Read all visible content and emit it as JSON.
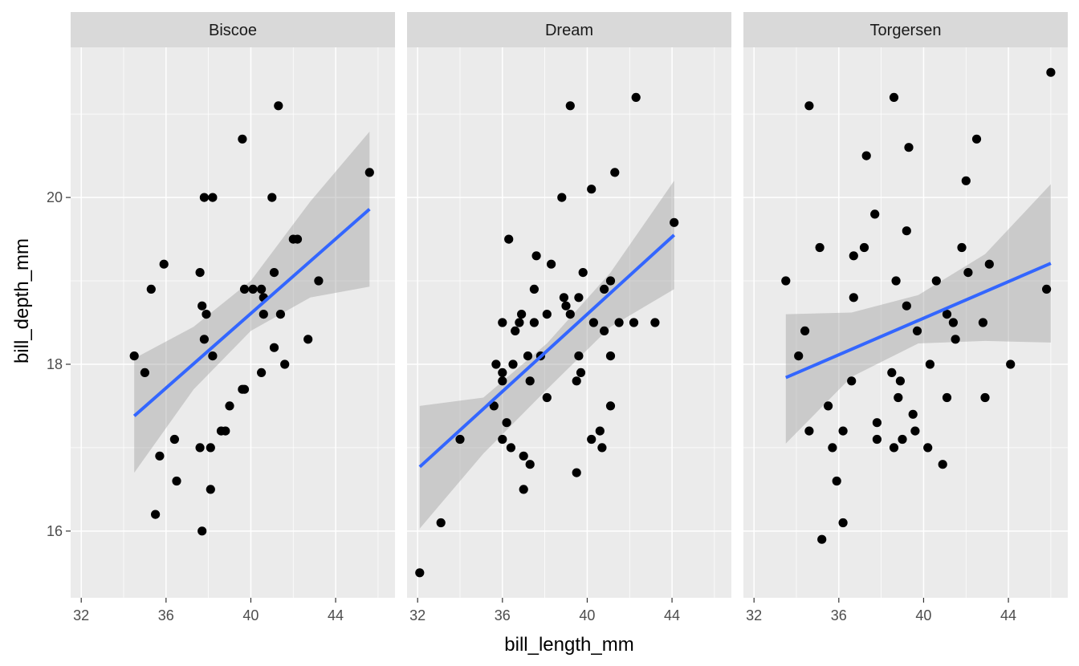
{
  "chart_data": {
    "type": "scatter",
    "facet_by": "island",
    "xlabel": "bill_length_mm",
    "ylabel": "bill_depth_mm",
    "xlim": [
      31.5,
      46.8
    ],
    "ylim": [
      15.2,
      21.8
    ],
    "x_ticks": [
      32,
      36,
      40,
      44
    ],
    "y_ticks": [
      16,
      18,
      20
    ],
    "grid": true,
    "colors": {
      "panel_bg": "#EBEBEB",
      "strip_bg": "#D9D9D9",
      "grid": "#FFFFFF",
      "point": "#000000",
      "line": "#3366FF",
      "band": "#999999"
    },
    "facets": [
      {
        "label": "Biscoe",
        "points": [
          [
            34.5,
            18.1
          ],
          [
            35.0,
            17.9
          ],
          [
            35.3,
            18.9
          ],
          [
            35.5,
            16.2
          ],
          [
            35.7,
            16.9
          ],
          [
            35.9,
            19.2
          ],
          [
            36.4,
            17.1
          ],
          [
            36.5,
            16.6
          ],
          [
            37.6,
            19.1
          ],
          [
            37.6,
            17.0
          ],
          [
            37.7,
            16.0
          ],
          [
            37.7,
            18.7
          ],
          [
            37.8,
            20.0
          ],
          [
            37.8,
            18.3
          ],
          [
            37.9,
            18.6
          ],
          [
            38.1,
            17.0
          ],
          [
            38.1,
            16.5
          ],
          [
            38.2,
            18.1
          ],
          [
            38.2,
            20.0
          ],
          [
            38.6,
            17.2
          ],
          [
            38.8,
            17.2
          ],
          [
            39.0,
            17.5
          ],
          [
            39.6,
            20.7
          ],
          [
            39.6,
            17.7
          ],
          [
            39.7,
            18.9
          ],
          [
            39.7,
            17.7
          ],
          [
            40.1,
            18.9
          ],
          [
            40.5,
            17.9
          ],
          [
            40.5,
            18.9
          ],
          [
            40.6,
            18.6
          ],
          [
            40.6,
            18.8
          ],
          [
            41.0,
            20.0
          ],
          [
            41.1,
            18.2
          ],
          [
            41.1,
            19.1
          ],
          [
            41.3,
            21.1
          ],
          [
            41.4,
            18.6
          ],
          [
            41.6,
            18.0
          ],
          [
            42.0,
            19.5
          ],
          [
            42.2,
            19.5
          ],
          [
            42.7,
            18.3
          ],
          [
            43.2,
            19.0
          ],
          [
            45.6,
            20.3
          ]
        ],
        "fit": {
          "x": [
            34.5,
            45.6
          ],
          "y": [
            17.38,
            19.86
          ]
        },
        "band": {
          "x": [
            34.5,
            37.3,
            40.0,
            42.8,
            45.6
          ],
          "lower": [
            16.7,
            17.7,
            18.4,
            18.8,
            18.93
          ],
          "upper": [
            18.07,
            18.45,
            19.0,
            19.95,
            20.79
          ]
        }
      },
      {
        "label": "Dream",
        "points": [
          [
            32.1,
            15.5
          ],
          [
            33.1,
            16.1
          ],
          [
            34.0,
            17.1
          ],
          [
            35.6,
            17.5
          ],
          [
            35.7,
            18.0
          ],
          [
            36.0,
            18.5
          ],
          [
            36.0,
            17.9
          ],
          [
            36.0,
            17.8
          ],
          [
            36.0,
            17.1
          ],
          [
            36.2,
            17.3
          ],
          [
            36.3,
            19.5
          ],
          [
            36.4,
            17.0
          ],
          [
            36.5,
            18.0
          ],
          [
            36.6,
            18.4
          ],
          [
            36.8,
            18.5
          ],
          [
            36.9,
            18.6
          ],
          [
            37.0,
            16.9
          ],
          [
            37.0,
            16.5
          ],
          [
            37.2,
            18.1
          ],
          [
            37.3,
            16.8
          ],
          [
            37.3,
            17.8
          ],
          [
            37.5,
            18.5
          ],
          [
            37.5,
            18.9
          ],
          [
            37.6,
            19.3
          ],
          [
            37.8,
            18.1
          ],
          [
            38.1,
            18.6
          ],
          [
            38.1,
            17.6
          ],
          [
            38.3,
            19.2
          ],
          [
            38.8,
            20.0
          ],
          [
            38.9,
            18.8
          ],
          [
            39.0,
            18.7
          ],
          [
            39.2,
            18.6
          ],
          [
            39.2,
            21.1
          ],
          [
            39.5,
            16.7
          ],
          [
            39.5,
            17.8
          ],
          [
            39.6,
            18.8
          ],
          [
            39.6,
            18.1
          ],
          [
            39.7,
            17.9
          ],
          [
            39.8,
            19.1
          ],
          [
            40.2,
            17.1
          ],
          [
            40.2,
            20.1
          ],
          [
            40.3,
            18.5
          ],
          [
            40.6,
            17.2
          ],
          [
            40.7,
            17.0
          ],
          [
            40.8,
            18.4
          ],
          [
            40.8,
            18.9
          ],
          [
            41.1,
            19.0
          ],
          [
            41.1,
            18.1
          ],
          [
            41.1,
            17.5
          ],
          [
            41.3,
            20.3
          ],
          [
            41.5,
            18.5
          ],
          [
            42.2,
            18.5
          ],
          [
            42.3,
            21.2
          ],
          [
            43.2,
            18.5
          ],
          [
            44.1,
            19.7
          ]
        ],
        "fit": {
          "x": [
            32.1,
            44.1
          ],
          "y": [
            16.77,
            19.55
          ]
        },
        "band": {
          "x": [
            32.1,
            35.1,
            38.1,
            41.1,
            44.1
          ],
          "lower": [
            16.03,
            16.93,
            17.7,
            18.45,
            18.9
          ],
          "upper": [
            17.5,
            17.6,
            18.25,
            19.1,
            20.2
          ]
        }
      },
      {
        "label": "Torgersen",
        "points": [
          [
            33.5,
            19.0
          ],
          [
            34.1,
            18.1
          ],
          [
            34.4,
            18.4
          ],
          [
            34.6,
            21.1
          ],
          [
            34.6,
            17.2
          ],
          [
            35.1,
            19.4
          ],
          [
            35.2,
            15.9
          ],
          [
            35.5,
            17.5
          ],
          [
            35.7,
            17.0
          ],
          [
            35.9,
            16.6
          ],
          [
            36.2,
            17.2
          ],
          [
            36.2,
            16.1
          ],
          [
            36.6,
            17.8
          ],
          [
            36.7,
            18.8
          ],
          [
            36.7,
            19.3
          ],
          [
            37.2,
            19.4
          ],
          [
            37.3,
            20.5
          ],
          [
            37.7,
            19.8
          ],
          [
            37.8,
            17.1
          ],
          [
            37.8,
            17.3
          ],
          [
            38.5,
            17.9
          ],
          [
            38.6,
            21.2
          ],
          [
            38.6,
            17.0
          ],
          [
            38.7,
            19.0
          ],
          [
            38.8,
            17.6
          ],
          [
            38.9,
            17.8
          ],
          [
            39.0,
            17.1
          ],
          [
            39.2,
            19.6
          ],
          [
            39.2,
            18.7
          ],
          [
            39.3,
            20.6
          ],
          [
            39.5,
            17.4
          ],
          [
            39.6,
            17.2
          ],
          [
            39.7,
            18.4
          ],
          [
            40.2,
            17.0
          ],
          [
            40.3,
            18.0
          ],
          [
            40.6,
            19.0
          ],
          [
            40.9,
            16.8
          ],
          [
            41.1,
            17.6
          ],
          [
            41.1,
            18.6
          ],
          [
            41.4,
            18.5
          ],
          [
            41.5,
            18.3
          ],
          [
            41.8,
            19.4
          ],
          [
            42.0,
            20.2
          ],
          [
            42.1,
            19.1
          ],
          [
            42.5,
            20.7
          ],
          [
            42.8,
            18.5
          ],
          [
            42.9,
            17.6
          ],
          [
            43.1,
            19.2
          ],
          [
            44.1,
            18.0
          ],
          [
            45.8,
            18.9
          ],
          [
            46.0,
            21.5
          ]
        ],
        "fit": {
          "x": [
            33.5,
            46.0
          ],
          "y": [
            17.84,
            19.21
          ]
        },
        "band": {
          "x": [
            33.5,
            36.6,
            39.75,
            42.9,
            46.0
          ],
          "lower": [
            17.05,
            17.85,
            18.25,
            18.28,
            18.26
          ],
          "upper": [
            18.6,
            18.62,
            18.83,
            19.32,
            20.16
          ]
        }
      }
    ]
  }
}
